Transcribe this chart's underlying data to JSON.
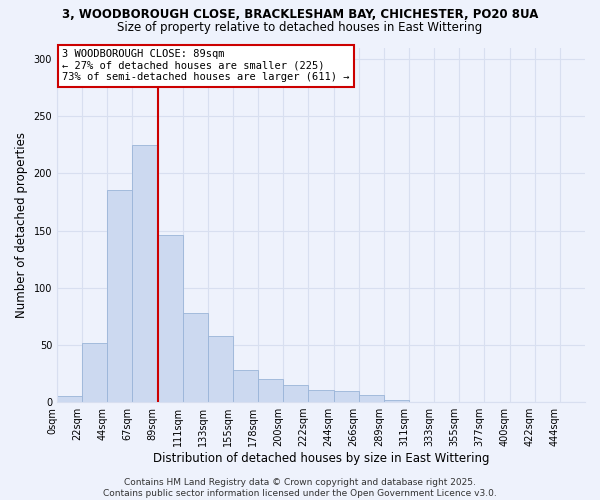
{
  "title_line1": "3, WOODBOROUGH CLOSE, BRACKLESHAM BAY, CHICHESTER, PO20 8UA",
  "title_line2": "Size of property relative to detached houses in East Wittering",
  "bar_labels": [
    "0sqm",
    "22sqm",
    "44sqm",
    "67sqm",
    "89sqm",
    "111sqm",
    "133sqm",
    "155sqm",
    "178sqm",
    "200sqm",
    "222sqm",
    "244sqm",
    "266sqm",
    "289sqm",
    "311sqm",
    "333sqm",
    "355sqm",
    "377sqm",
    "400sqm",
    "422sqm",
    "444sqm"
  ],
  "bar_heights": [
    5,
    52,
    185,
    225,
    146,
    78,
    58,
    28,
    20,
    15,
    11,
    10,
    6,
    2,
    0,
    0,
    0,
    0,
    0,
    0,
    0
  ],
  "bar_color": "#ccd9f0",
  "bar_edge_color": "#9ab4d8",
  "xlabel": "Distribution of detached houses by size in East Wittering",
  "ylabel": "Number of detached properties",
  "ylim": [
    0,
    310
  ],
  "yticks": [
    0,
    50,
    100,
    150,
    200,
    250,
    300
  ],
  "vline_color": "#cc0000",
  "vline_x_index": 4,
  "annotation_title": "3 WOODBOROUGH CLOSE: 89sqm",
  "annotation_line2": "← 27% of detached houses are smaller (225)",
  "annotation_line3": "73% of semi-detached houses are larger (611) →",
  "annotation_box_color": "#ffffff",
  "annotation_box_edge": "#cc0000",
  "footer_line1": "Contains HM Land Registry data © Crown copyright and database right 2025.",
  "footer_line2": "Contains public sector information licensed under the Open Government Licence v3.0.",
  "background_color": "#eef2fc",
  "grid_color": "#d8dff0",
  "title_fontsize": 8.5,
  "subtitle_fontsize": 8.5,
  "xlabel_fontsize": 8.5,
  "ylabel_fontsize": 8.5,
  "tick_fontsize": 7,
  "footer_fontsize": 6.5,
  "ann_fontsize": 7.5
}
